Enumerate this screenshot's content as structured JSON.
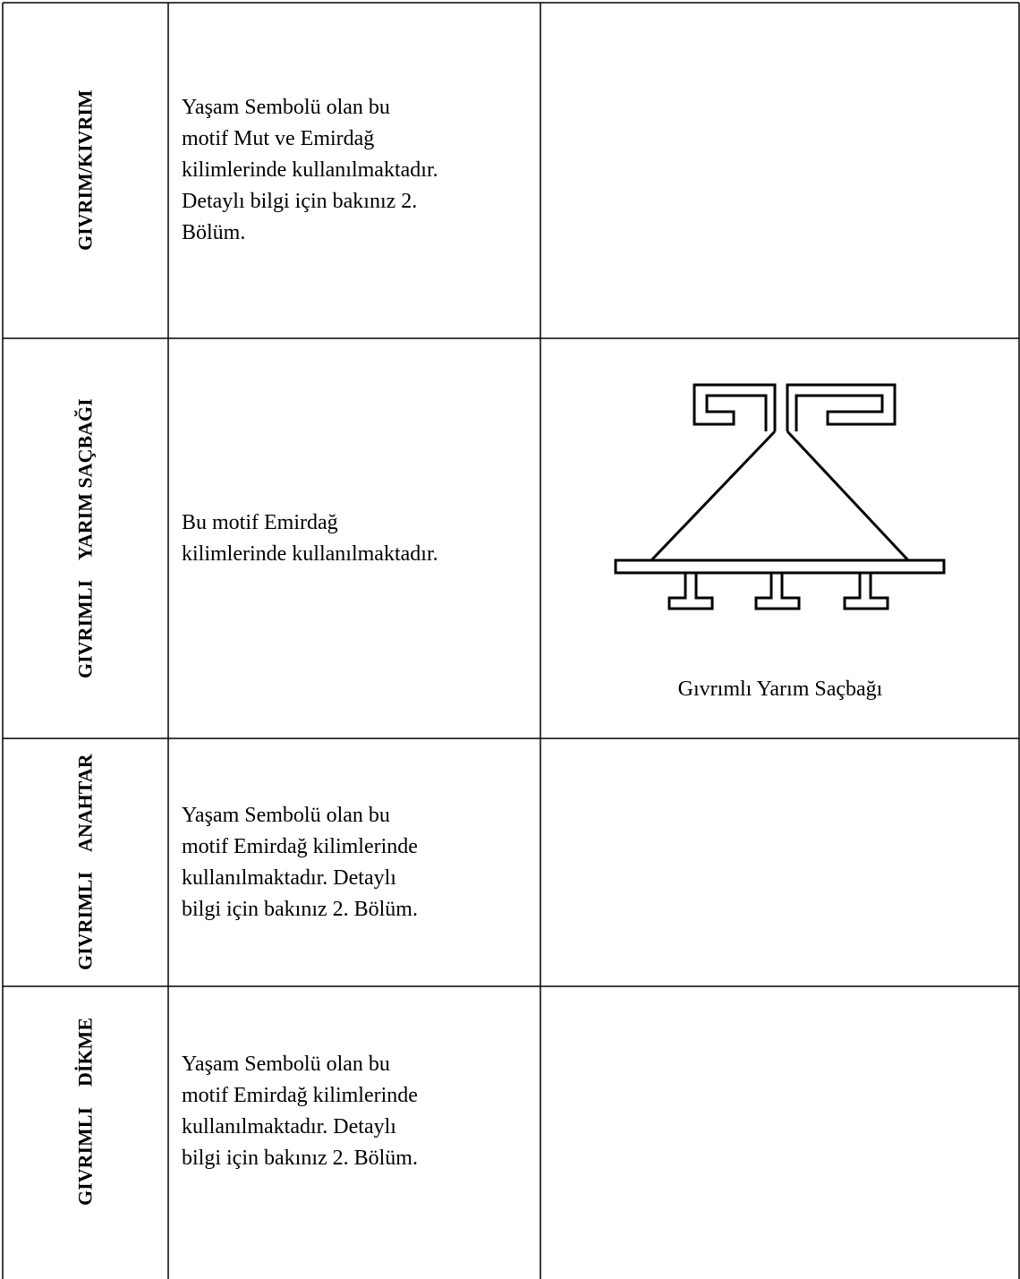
{
  "table": {
    "rows": [
      {
        "name_lines": [
          "GIVRIM/KIVRIM"
        ],
        "description_lines": [
          "Yaşam Sembolü olan bu",
          "motif Mut ve Emirdağ",
          "kilimlerinde kullanılmaktadır.",
          "Detaylı bilgi için bakınız 2.",
          "Bölüm."
        ]
      },
      {
        "name_lines": [
          "GIVRIMLI",
          "YARIM SAÇBAĞI"
        ],
        "description_lines": [
          "Bu motif Emirdağ",
          "kilimlerinde kullanılmaktadır."
        ],
        "caption": "Gıvrımlı Yarım Saçbağı"
      },
      {
        "name_lines": [
          "GIVRIMLI",
          "ANAHTAR"
        ],
        "description_lines": [
          "Yaşam Sembolü olan bu",
          "motif Emirdağ kilimlerinde",
          "kullanılmaktadır. Detaylı",
          "bilgi için bakınız 2. Bölüm."
        ]
      },
      {
        "name_lines": [
          "GIVRIMLI",
          "DİKME"
        ],
        "description_lines": [
          "Yaşam Sembolü olan bu",
          "motif Emirdağ kilimlerinde",
          "kullanılmaktadır. Detaylı",
          "bilgi için bakınız 2. Bölüm."
        ]
      }
    ]
  }
}
